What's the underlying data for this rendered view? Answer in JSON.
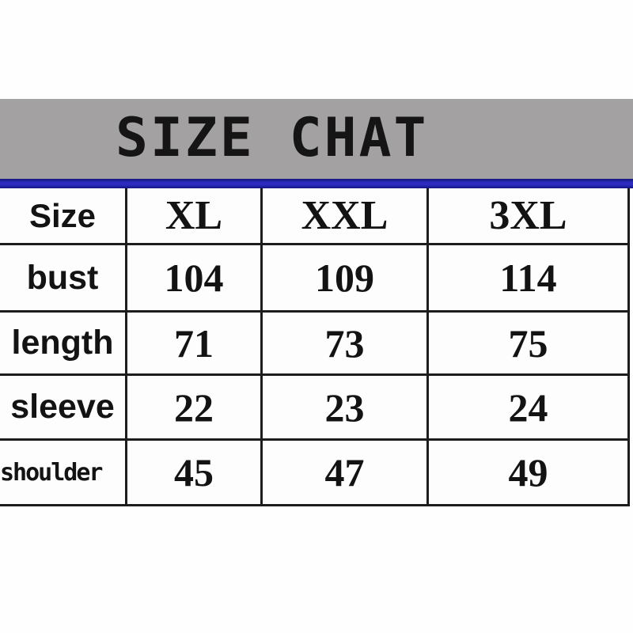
{
  "banner": {
    "title": "SIZE CHAT"
  },
  "table": {
    "header": {
      "label": "Size",
      "columns": [
        "XL",
        "XXL",
        "3XL"
      ]
    },
    "rows": [
      {
        "label": "bust",
        "values": [
          "104",
          "109",
          "114"
        ]
      },
      {
        "label": "length",
        "values": [
          "71",
          "73",
          "75"
        ]
      },
      {
        "label": "sleeve",
        "values": [
          "22",
          "23",
          "24"
        ]
      },
      {
        "label": "shoulder",
        "values": [
          "45",
          "47",
          "49"
        ]
      }
    ]
  },
  "colors": {
    "banner_bg": "#a3a1a1",
    "accent_line_blue": "#2222b2",
    "table_border": "#1d1d1d",
    "text": "#131313",
    "background": "#fefefe"
  },
  "chart_data": {
    "type": "table",
    "title": "SIZE CHAT",
    "columns": [
      "Size",
      "XL",
      "XXL",
      "3XL"
    ],
    "rows": [
      [
        "bust",
        104,
        109,
        114
      ],
      [
        "length",
        71,
        73,
        75
      ],
      [
        "sleeve",
        22,
        23,
        24
      ],
      [
        "shoulder",
        45,
        47,
        49
      ]
    ]
  }
}
